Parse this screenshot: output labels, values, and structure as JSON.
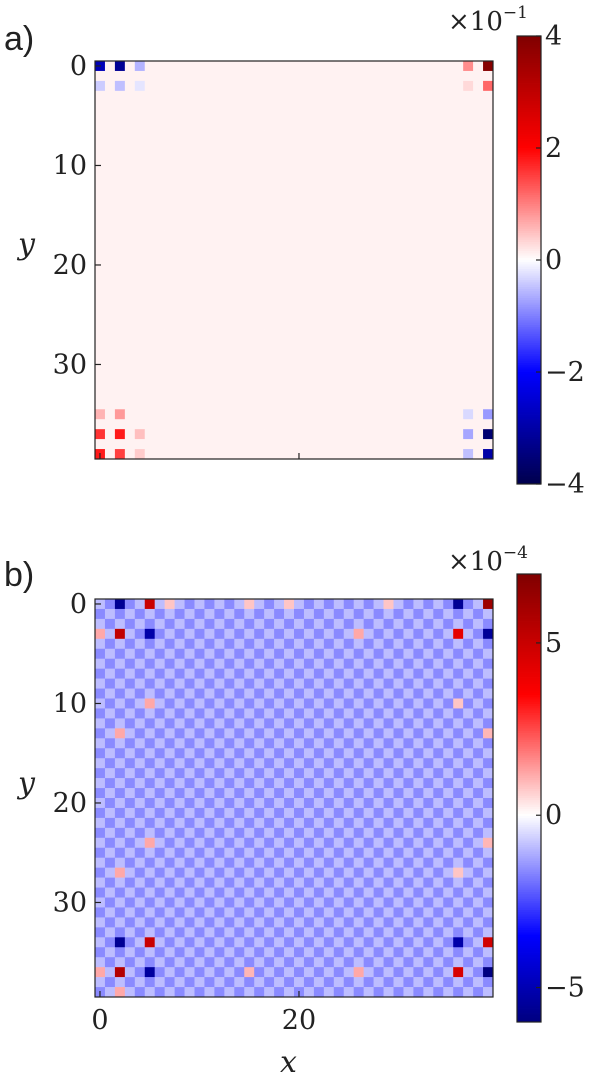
{
  "chart_data": [
    {
      "type": "heatmap",
      "panel_label": "a)",
      "xlabel": "",
      "ylabel": "y",
      "grid_size": 40,
      "x_ticks": [],
      "y_ticks": [
        0,
        10,
        20,
        30
      ],
      "y_tick_labels": [
        "0",
        "10",
        "20",
        "30"
      ],
      "colorbar": {
        "min": -4,
        "max": 4,
        "ticks": [
          -4,
          -2,
          0,
          2,
          4
        ],
        "tick_labels": [
          "−4",
          "−2",
          "0",
          "2",
          "4"
        ],
        "scale_base": "×10",
        "scale_exponent": "−1",
        "colormap": "seismic"
      },
      "background_value": 0.1,
      "cells": [
        {
          "x": 0,
          "y": 0,
          "v": -2.8
        },
        {
          "x": 2,
          "y": 0,
          "v": -3.2
        },
        {
          "x": 4,
          "y": 0,
          "v": -0.6
        },
        {
          "x": 0,
          "y": 2,
          "v": -0.4
        },
        {
          "x": 2,
          "y": 2,
          "v": -0.5
        },
        {
          "x": 4,
          "y": 2,
          "v": -0.2
        },
        {
          "x": 37,
          "y": 0,
          "v": 0.9
        },
        {
          "x": 39,
          "y": 0,
          "v": 3.9
        },
        {
          "x": 37,
          "y": 2,
          "v": 0.3
        },
        {
          "x": 39,
          "y": 2,
          "v": 1.2
        },
        {
          "x": 0,
          "y": 35,
          "v": 0.6
        },
        {
          "x": 2,
          "y": 35,
          "v": 0.8
        },
        {
          "x": 0,
          "y": 37,
          "v": 1.6
        },
        {
          "x": 2,
          "y": 37,
          "v": 1.8
        },
        {
          "x": 4,
          "y": 37,
          "v": 0.5
        },
        {
          "x": 0,
          "y": 39,
          "v": 1.8
        },
        {
          "x": 2,
          "y": 39,
          "v": 1.5
        },
        {
          "x": 4,
          "y": 39,
          "v": 0.4
        },
        {
          "x": 37,
          "y": 35,
          "v": -0.3
        },
        {
          "x": 39,
          "y": 35,
          "v": -0.8
        },
        {
          "x": 37,
          "y": 37,
          "v": -0.7
        },
        {
          "x": 39,
          "y": 37,
          "v": -3.6
        },
        {
          "x": 37,
          "y": 39,
          "v": -0.5
        },
        {
          "x": 39,
          "y": 39,
          "v": -3.0
        }
      ]
    },
    {
      "type": "heatmap",
      "panel_label": "b)",
      "xlabel": "x",
      "ylabel": "y",
      "grid_size": 40,
      "x_ticks": [
        0,
        20
      ],
      "x_tick_labels": [
        "0",
        "20"
      ],
      "y_ticks": [
        0,
        10,
        20,
        30
      ],
      "y_tick_labels": [
        "0",
        "10",
        "20",
        "30"
      ],
      "colorbar": {
        "min": -6,
        "max": 7,
        "ticks": [
          -5,
          0,
          5
        ],
        "tick_labels": [
          "−5",
          "0",
          "5"
        ],
        "scale_base": "×10",
        "scale_exponent": "−4",
        "colormap": "seismic"
      },
      "checker": {
        "even_value": -0.9,
        "odd_value": -1.6
      },
      "cells": [
        {
          "x": 2,
          "y": 0,
          "v": -5.6
        },
        {
          "x": 5,
          "y": 0,
          "v": 5.0
        },
        {
          "x": 7,
          "y": 0,
          "v": 0.8
        },
        {
          "x": 15,
          "y": 0,
          "v": 0.8
        },
        {
          "x": 19,
          "y": 0,
          "v": 0.8
        },
        {
          "x": 29,
          "y": 0,
          "v": 0.8
        },
        {
          "x": 36,
          "y": 0,
          "v": -5.6
        },
        {
          "x": 39,
          "y": 0,
          "v": 6.2
        },
        {
          "x": 0,
          "y": 3,
          "v": 1.2
        },
        {
          "x": 2,
          "y": 3,
          "v": 5.2
        },
        {
          "x": 5,
          "y": 3,
          "v": -5.2
        },
        {
          "x": 26,
          "y": 3,
          "v": 1.2
        },
        {
          "x": 36,
          "y": 3,
          "v": 4.2
        },
        {
          "x": 39,
          "y": 3,
          "v": -5.5
        },
        {
          "x": 5,
          "y": 10,
          "v": 1.2
        },
        {
          "x": 2,
          "y": 13,
          "v": 1.2
        },
        {
          "x": 39,
          "y": 13,
          "v": 1.0
        },
        {
          "x": 36,
          "y": 10,
          "v": 0.8
        },
        {
          "x": 5,
          "y": 24,
          "v": 1.2
        },
        {
          "x": 2,
          "y": 27,
          "v": 1.2
        },
        {
          "x": 39,
          "y": 24,
          "v": 1.0
        },
        {
          "x": 36,
          "y": 27,
          "v": 0.8
        },
        {
          "x": 2,
          "y": 34,
          "v": -5.6
        },
        {
          "x": 5,
          "y": 34,
          "v": 5.0
        },
        {
          "x": 36,
          "y": 34,
          "v": -5.2
        },
        {
          "x": 39,
          "y": 34,
          "v": 4.8
        },
        {
          "x": 0,
          "y": 37,
          "v": 1.2
        },
        {
          "x": 2,
          "y": 37,
          "v": 5.6
        },
        {
          "x": 5,
          "y": 37,
          "v": -5.4
        },
        {
          "x": 15,
          "y": 37,
          "v": 1.0
        },
        {
          "x": 26,
          "y": 37,
          "v": 1.2
        },
        {
          "x": 36,
          "y": 37,
          "v": 4.6
        },
        {
          "x": 39,
          "y": 37,
          "v": -6.0
        },
        {
          "x": 2,
          "y": 39,
          "v": 1.2
        }
      ]
    }
  ]
}
